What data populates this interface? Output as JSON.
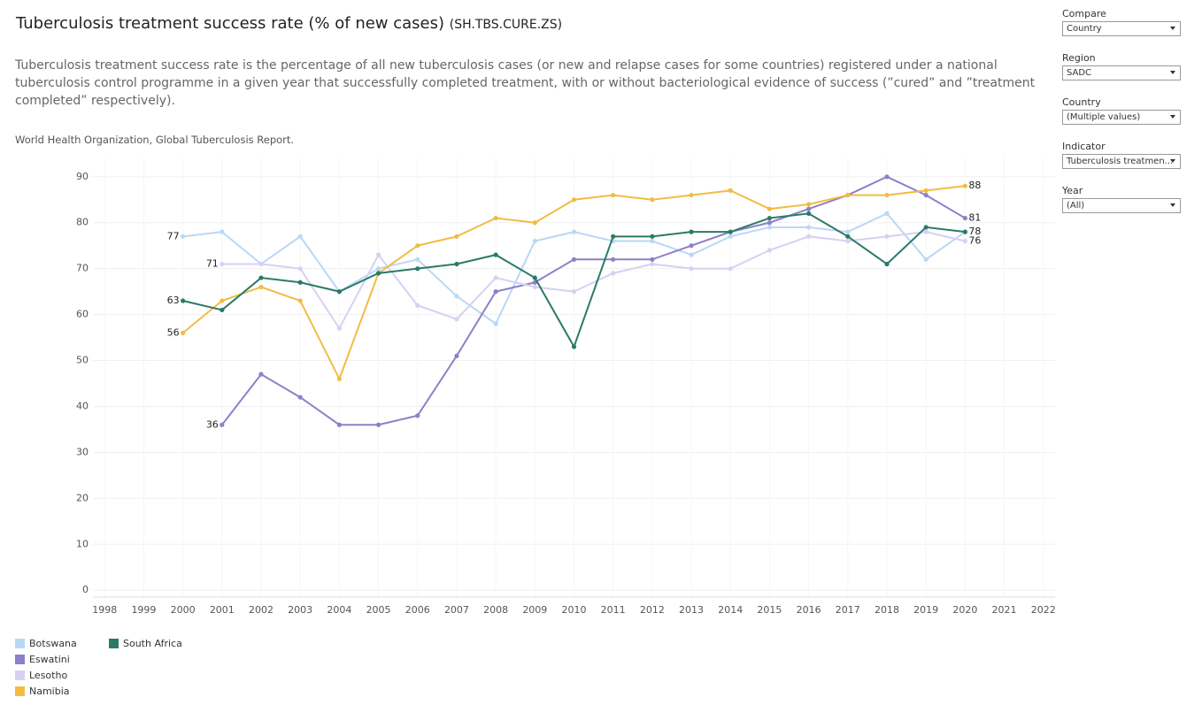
{
  "chart_data": {
    "type": "line",
    "title": "Tuberculosis treatment success rate (% of new cases)",
    "title_code": "(SH.TBS.CURE.ZS)",
    "description": "Tuberculosis treatment success rate is the percentage of all new tuberculosis cases (or new and relapse cases for some countries) registered under a national tuberculosis control programme in a given year that successfully completed treatment, with or without bacteriological evidence of success (”cured” and ”treatment completed” respectively).",
    "source": "World Health Organization, Global Tuberculosis Report.",
    "x": [
      2000,
      2001,
      2002,
      2003,
      2004,
      2005,
      2006,
      2007,
      2008,
      2009,
      2010,
      2011,
      2012,
      2013,
      2014,
      2015,
      2016,
      2017,
      2018,
      2019,
      2020
    ],
    "series": [
      {
        "name": "Botswana",
        "color": "#b9d8f4",
        "values": [
          77,
          78,
          71,
          77,
          65,
          70,
          72,
          64,
          58,
          76,
          78,
          76,
          76,
          73,
          77,
          79,
          79,
          78,
          82,
          72,
          78
        ]
      },
      {
        "name": "Eswatini",
        "color": "#8d80c8",
        "values": [
          null,
          36,
          47,
          42,
          36,
          36,
          38,
          51,
          65,
          67,
          72,
          72,
          72,
          75,
          78,
          80,
          83,
          86,
          90,
          86,
          81
        ]
      },
      {
        "name": "Lesotho",
        "color": "#d8d0f3",
        "values": [
          null,
          71,
          71,
          70,
          57,
          73,
          62,
          59,
          68,
          66,
          65,
          69,
          71,
          70,
          70,
          74,
          77,
          76,
          77,
          78,
          76
        ]
      },
      {
        "name": "Namibia",
        "color": "#f2bc42",
        "values": [
          56,
          63,
          66,
          63,
          46,
          69,
          75,
          77,
          81,
          80,
          85,
          86,
          85,
          86,
          87,
          83,
          84,
          86,
          86,
          87,
          88
        ]
      },
      {
        "name": "South Africa",
        "color": "#2a7a68",
        "values": [
          63,
          61,
          68,
          67,
          65,
          69,
          70,
          71,
          73,
          68,
          53,
          77,
          77,
          78,
          78,
          81,
          82,
          77,
          71,
          79,
          78
        ]
      }
    ],
    "xlim": [
      1997.7,
      2022.3
    ],
    "xticks": [
      1998,
      1999,
      2000,
      2001,
      2002,
      2003,
      2004,
      2005,
      2006,
      2007,
      2008,
      2009,
      2010,
      2011,
      2012,
      2013,
      2014,
      2015,
      2016,
      2017,
      2018,
      2019,
      2020,
      2021,
      2022
    ],
    "ylim": [
      -1.5,
      94.2
    ],
    "yticks": [
      0,
      10,
      20,
      30,
      40,
      50,
      60,
      70,
      80,
      90
    ],
    "grid": true
  },
  "filters": [
    {
      "label": "Compare",
      "value": "Country"
    },
    {
      "label": "Region",
      "value": "SADC"
    },
    {
      "label": "Country",
      "value": "(Multiple values)"
    },
    {
      "label": "Indicator",
      "value": "Tuberculosis treatmen..."
    },
    {
      "label": "Year",
      "value": "(All)"
    }
  ]
}
